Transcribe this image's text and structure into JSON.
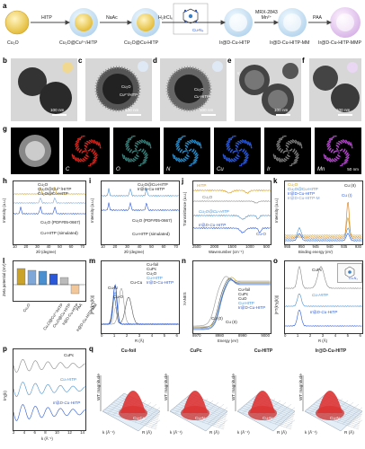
{
  "panels": {
    "a": "a",
    "b": "b",
    "c": "c",
    "d": "d",
    "e": "e",
    "f": "f",
    "g": "g",
    "h": "h",
    "i": "i",
    "j": "j",
    "k": "k",
    "l": "l",
    "m": "m",
    "n": "n",
    "o": "o",
    "p": "p",
    "q": "q"
  },
  "scheme": {
    "stages": [
      "Cu₂O",
      "Cu₂O@Cu²⁺/HITP",
      "Cu₂O@Cu-HITP",
      "Ir@D-Cu-HITP",
      "Ir@D-Cu-HITP-MM",
      "Ir@D-Cu-HITP-MMP"
    ],
    "reagents": [
      "HITP",
      "NaAc",
      "H₂IrCl₆",
      "MRX-2843\nMn²⁺",
      "PAA"
    ],
    "inset": "Cu-N₄"
  },
  "tem": {
    "b": {
      "scale": "100 nm"
    },
    "c": {
      "labels": [
        "Cu₂O",
        "Cu²⁺/HITP"
      ],
      "scale": "100 nm"
    },
    "d": {
      "labels": [
        "Cu₂O",
        "Cu-HITP"
      ],
      "scale": "100 nm"
    },
    "e": {
      "labels": [
        "Ir"
      ],
      "scale": "100 nm"
    },
    "f": {
      "scale": "100 nm"
    }
  },
  "eds": {
    "elements": [
      "C",
      "O",
      "N",
      "Cu",
      "Ir",
      "Mn"
    ],
    "colors": [
      "#d4271f",
      "#3a7d78",
      "#2a8ac7",
      "#2a58d8",
      "#7a7a7a",
      "#b048c8"
    ],
    "scale": "50 nm"
  },
  "h": {
    "ylabel": "Intensity (a.u.)",
    "xlabel": "2θ (degree)",
    "xticks": [
      "10",
      "20",
      "30",
      "40",
      "50",
      "60",
      "70"
    ],
    "legend": [
      "Cu₂O",
      "Cu₂O@Cu²⁺/HITP",
      "Cu₂O@Cu-HITP"
    ],
    "refs": [
      "Cu₂O (PDF#05-0667)",
      "Cu-HITP (simulated)"
    ]
  },
  "i": {
    "ylabel": "Intensity (a.u.)",
    "xlabel": "2θ (degree)",
    "xticks": [
      "10",
      "20",
      "30",
      "40",
      "50",
      "60",
      "70"
    ],
    "legend": [
      "Cu₂O@Cu-HITP",
      "Ir@D-Cu-HITP"
    ],
    "refs": [
      "Cu₂O (PDF#05-0667)",
      "Cu-HITP (simulated)"
    ]
  },
  "j": {
    "ylabel": "Transmittance (a.u.)",
    "xlabel": "Wavenumber (cm⁻¹)",
    "xticks": [
      "2500",
      "2000",
      "1500",
      "1000",
      "500"
    ],
    "labels": [
      "HITP",
      "Cu₂O",
      "Cu₂O@Cu-HITP",
      "Ir@D-Cu-HITP",
      "Cu-O"
    ]
  },
  "k": {
    "ylabel": "Intensity (a.u.)",
    "xlabel": "Binding energy (eV)",
    "xticks": [
      "955",
      "950",
      "945",
      "940",
      "935",
      "930"
    ],
    "legend": [
      "Cu₂O",
      "Cu₂O@Cu-HITP",
      "Ir@D-Cu-HITP",
      "Ir@D-Cu-HITP-M"
    ],
    "labels": [
      "Cu (I)",
      "Cu (II)"
    ]
  },
  "l": {
    "ylabel": "Zeta potential (mV)",
    "yticks": [
      "30",
      "20",
      "10",
      "0",
      "-10",
      "-20"
    ],
    "categories": [
      "Cu₂O",
      "Cu₂O@Cu²⁺/HITP",
      "Cu₂O@Cu-HITP",
      "Ir@D-Cu-HITP",
      "Ir@D-Cu-HITP-MM",
      "PAA"
    ]
  },
  "m": {
    "ylabel": "|FT(k³χ(k))|",
    "xlabel": "R (Å)",
    "xticks": [
      "0",
      "1",
      "2",
      "3",
      "4",
      "5",
      "6"
    ],
    "legend": [
      "Cu-foil",
      "CuPc",
      "Cu₂O",
      "Cu-HITP",
      "Ir@D-Cu-HITP"
    ],
    "labels": [
      "Cu-N",
      "Cu-O",
      "Cu-Cu"
    ]
  },
  "n": {
    "ylabel": "XANES",
    "xlabel": "Energy (eV)",
    "xticks": [
      "8970",
      "8980",
      "8990",
      "9000"
    ],
    "legend": [
      "Cu-foil",
      "CuPc",
      "CuO",
      "Cu-HITP",
      "Ir@D-Cu-HITP"
    ],
    "labels": [
      "Cu (0)",
      "Cu (II)"
    ]
  },
  "o": {
    "ylabel": "|FT(k³χ(k))|",
    "xlabel": "R (Å)",
    "xticks": [
      "0",
      "1",
      "2",
      "3",
      "4",
      "5",
      "6"
    ],
    "labels": [
      "CuPc",
      "Cu-HITP",
      "Ir@D-Cu-HITP",
      "Cu-N₄"
    ]
  },
  "p": {
    "ylabel": "k³χ(k)",
    "xlabel": "k (Å⁻¹)",
    "xticks": [
      "2",
      "4",
      "6",
      "8",
      "10",
      "12",
      "14"
    ],
    "labels": [
      "CuPc",
      "Cu-HITP",
      "Ir@D-Cu-HITP"
    ]
  },
  "q": {
    "titles": [
      "Cu-foil",
      "CuPc",
      "Cu-HITP",
      "Ir@D-Cu-HITP"
    ],
    "peaks": [
      "Cu-Cu",
      "Cu-N",
      "Cu-N",
      "Cu-N"
    ],
    "zlabel": "WT magnitude",
    "xlabel": "R (Å)",
    "ylabel": "k (Å⁻¹)"
  }
}
